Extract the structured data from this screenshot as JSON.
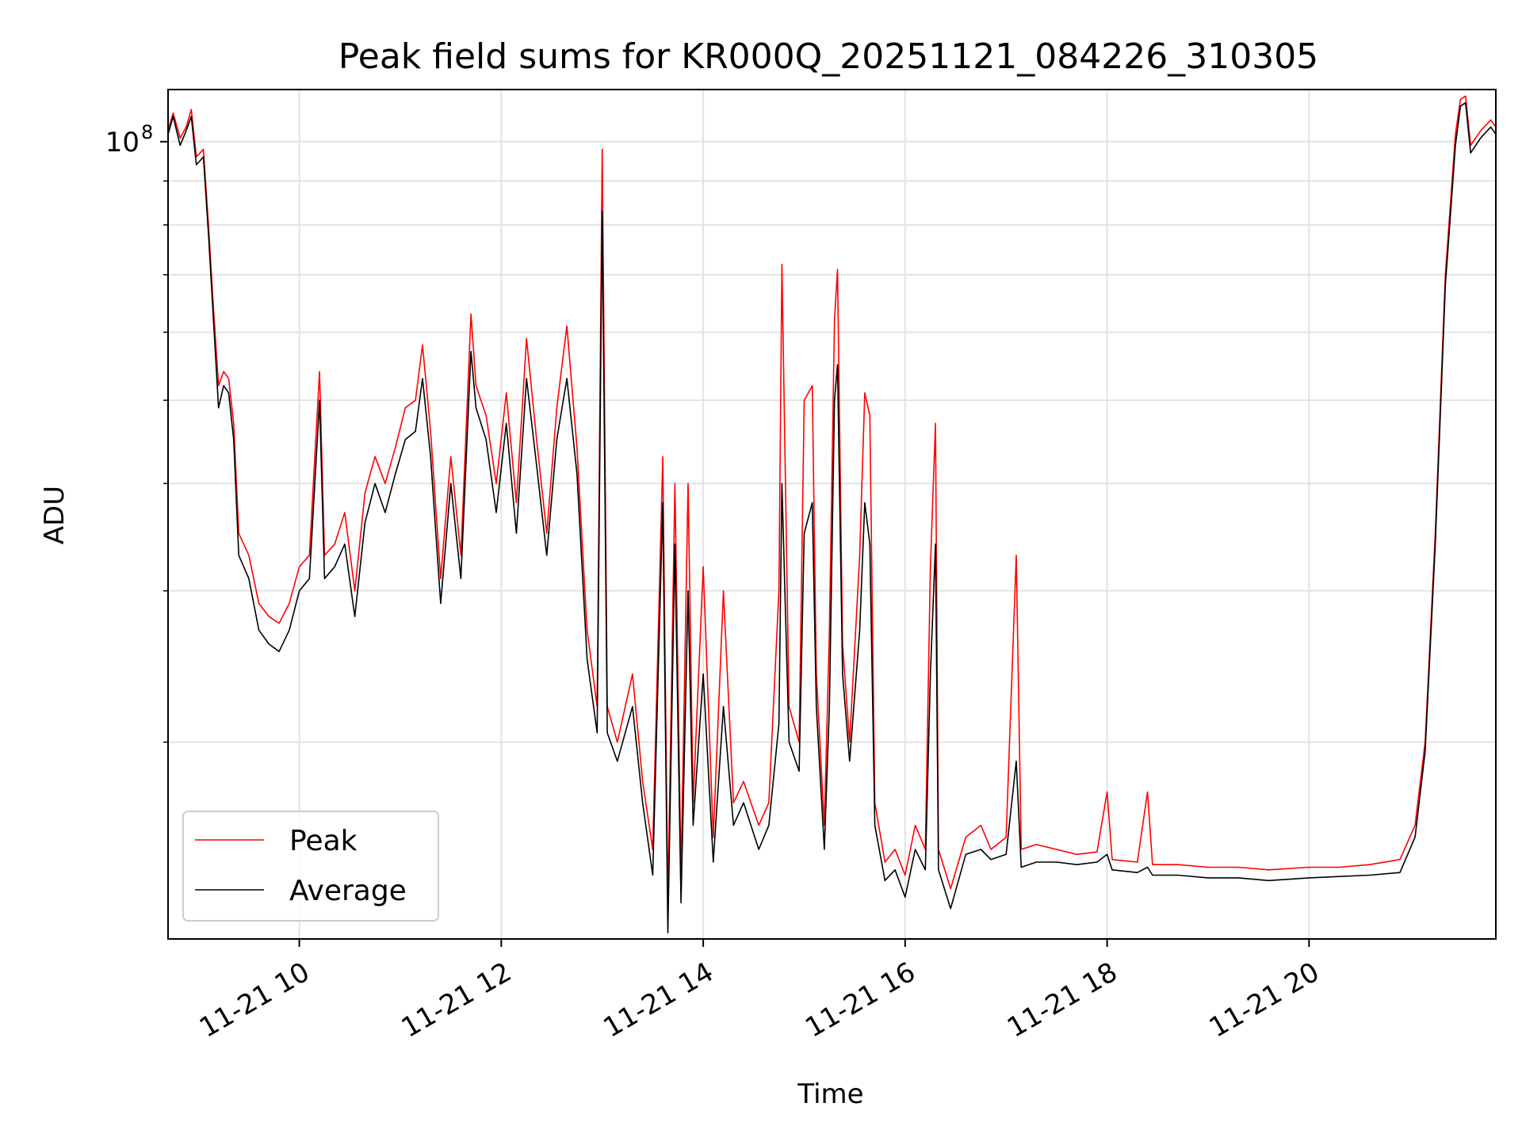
{
  "chart_data": {
    "type": "line",
    "title": "Peak field sums for KR000Q_20251121_084226_310305",
    "xlabel": "Time",
    "ylabel": "ADU",
    "yscale": "log",
    "grid": true,
    "legend_position": "bottom-left",
    "x_unit": "hours since 2025-11-21 00:00",
    "xlim": [
      8.7,
      21.85
    ],
    "ylim": [
      11800000,
      115000000
    ],
    "x_ticks": [
      {
        "value": 10,
        "label": "11-21 10"
      },
      {
        "value": 12,
        "label": "11-21 12"
      },
      {
        "value": 14,
        "label": "11-21 14"
      },
      {
        "value": 16,
        "label": "11-21 16"
      },
      {
        "value": 18,
        "label": "11-21 18"
      },
      {
        "value": 20,
        "label": "11-21 20"
      }
    ],
    "y_major_ticks": [
      {
        "value": 100000000,
        "base": "10",
        "exp": "8"
      }
    ],
    "y_minor_ticks": [
      20000000,
      30000000,
      40000000,
      50000000,
      60000000,
      70000000,
      80000000,
      90000000
    ],
    "legend": [
      "Peak",
      "Average"
    ],
    "series": [
      {
        "name": "Peak",
        "color": "#ff0000",
        "points": [
          [
            8.7,
            103000000
          ],
          [
            8.75,
            108000000
          ],
          [
            8.82,
            101000000
          ],
          [
            8.88,
            104000000
          ],
          [
            8.93,
            109000000
          ],
          [
            8.98,
            96000000
          ],
          [
            9.05,
            98000000
          ],
          [
            9.1,
            80000000
          ],
          [
            9.15,
            64000000
          ],
          [
            9.2,
            52000000
          ],
          [
            9.25,
            54000000
          ],
          [
            9.3,
            53000000
          ],
          [
            9.35,
            47000000
          ],
          [
            9.4,
            35000000
          ],
          [
            9.5,
            33000000
          ],
          [
            9.6,
            29000000
          ],
          [
            9.7,
            28000000
          ],
          [
            9.8,
            27500000
          ],
          [
            9.9,
            29000000
          ],
          [
            10.0,
            32000000
          ],
          [
            10.1,
            33000000
          ],
          [
            10.2,
            54000000
          ],
          [
            10.25,
            33000000
          ],
          [
            10.35,
            34000000
          ],
          [
            10.45,
            37000000
          ],
          [
            10.55,
            30000000
          ],
          [
            10.65,
            39000000
          ],
          [
            10.75,
            43000000
          ],
          [
            10.85,
            40000000
          ],
          [
            10.95,
            44000000
          ],
          [
            11.05,
            49000000
          ],
          [
            11.15,
            50000000
          ],
          [
            11.22,
            58000000
          ],
          [
            11.3,
            46000000
          ],
          [
            11.4,
            31000000
          ],
          [
            11.5,
            43000000
          ],
          [
            11.6,
            33000000
          ],
          [
            11.7,
            63000000
          ],
          [
            11.75,
            52000000
          ],
          [
            11.85,
            48000000
          ],
          [
            11.95,
            40000000
          ],
          [
            12.05,
            51000000
          ],
          [
            12.15,
            38000000
          ],
          [
            12.25,
            59000000
          ],
          [
            12.35,
            45000000
          ],
          [
            12.45,
            35000000
          ],
          [
            12.55,
            49000000
          ],
          [
            12.65,
            61000000
          ],
          [
            12.75,
            44000000
          ],
          [
            12.85,
            27000000
          ],
          [
            12.95,
            22000000
          ],
          [
            13.0,
            98000000
          ],
          [
            13.05,
            22000000
          ],
          [
            13.15,
            20000000
          ],
          [
            13.3,
            24000000
          ],
          [
            13.4,
            18000000
          ],
          [
            13.5,
            15000000
          ],
          [
            13.6,
            43000000
          ],
          [
            13.65,
            13000000
          ],
          [
            13.72,
            40000000
          ],
          [
            13.78,
            14000000
          ],
          [
            13.85,
            40000000
          ],
          [
            13.9,
            17000000
          ],
          [
            14.0,
            32000000
          ],
          [
            14.1,
            15500000
          ],
          [
            14.2,
            30000000
          ],
          [
            14.3,
            17000000
          ],
          [
            14.4,
            18000000
          ],
          [
            14.55,
            16000000
          ],
          [
            14.65,
            17000000
          ],
          [
            14.75,
            30000000
          ],
          [
            14.78,
            72000000
          ],
          [
            14.85,
            22000000
          ],
          [
            14.95,
            20000000
          ],
          [
            15.0,
            50000000
          ],
          [
            15.08,
            52000000
          ],
          [
            15.12,
            24000000
          ],
          [
            15.2,
            16000000
          ],
          [
            15.25,
            27000000
          ],
          [
            15.3,
            62000000
          ],
          [
            15.33,
            71000000
          ],
          [
            15.38,
            26000000
          ],
          [
            15.45,
            20000000
          ],
          [
            15.55,
            33000000
          ],
          [
            15.6,
            51000000
          ],
          [
            15.65,
            48000000
          ],
          [
            15.7,
            17000000
          ],
          [
            15.8,
            14500000
          ],
          [
            15.9,
            15000000
          ],
          [
            16.0,
            14000000
          ],
          [
            16.1,
            16000000
          ],
          [
            16.2,
            15000000
          ],
          [
            16.25,
            32000000
          ],
          [
            16.3,
            47000000
          ],
          [
            16.33,
            15000000
          ],
          [
            16.45,
            13500000
          ],
          [
            16.6,
            15500000
          ],
          [
            16.75,
            16000000
          ],
          [
            16.85,
            15000000
          ],
          [
            17.0,
            15500000
          ],
          [
            17.1,
            33000000
          ],
          [
            17.15,
            15000000
          ],
          [
            17.3,
            15200000
          ],
          [
            17.5,
            15000000
          ],
          [
            17.7,
            14800000
          ],
          [
            17.9,
            14900000
          ],
          [
            18.0,
            17500000
          ],
          [
            18.05,
            14600000
          ],
          [
            18.3,
            14500000
          ],
          [
            18.4,
            17500000
          ],
          [
            18.45,
            14400000
          ],
          [
            18.7,
            14400000
          ],
          [
            19.0,
            14300000
          ],
          [
            19.3,
            14300000
          ],
          [
            19.6,
            14200000
          ],
          [
            20.0,
            14300000
          ],
          [
            20.3,
            14300000
          ],
          [
            20.6,
            14400000
          ],
          [
            20.9,
            14600000
          ],
          [
            21.05,
            16000000
          ],
          [
            21.15,
            20000000
          ],
          [
            21.25,
            35000000
          ],
          [
            21.35,
            70000000
          ],
          [
            21.45,
            102000000
          ],
          [
            21.5,
            112000000
          ],
          [
            21.55,
            113000000
          ],
          [
            21.6,
            99000000
          ],
          [
            21.7,
            103000000
          ],
          [
            21.8,
            106000000
          ],
          [
            21.85,
            104000000
          ]
        ]
      },
      {
        "name": "Average",
        "color": "#000000",
        "points": [
          [
            8.7,
            102000000
          ],
          [
            8.75,
            107000000
          ],
          [
            8.82,
            99000000
          ],
          [
            8.88,
            103000000
          ],
          [
            8.93,
            107000000
          ],
          [
            8.98,
            94000000
          ],
          [
            9.05,
            96000000
          ],
          [
            9.1,
            78000000
          ],
          [
            9.15,
            62000000
          ],
          [
            9.2,
            49000000
          ],
          [
            9.25,
            52000000
          ],
          [
            9.3,
            51000000
          ],
          [
            9.35,
            45000000
          ],
          [
            9.4,
            33000000
          ],
          [
            9.5,
            31000000
          ],
          [
            9.6,
            27000000
          ],
          [
            9.7,
            26000000
          ],
          [
            9.8,
            25500000
          ],
          [
            9.9,
            27000000
          ],
          [
            10.0,
            30000000
          ],
          [
            10.1,
            31000000
          ],
          [
            10.2,
            50000000
          ],
          [
            10.25,
            31000000
          ],
          [
            10.35,
            32000000
          ],
          [
            10.45,
            34000000
          ],
          [
            10.55,
            28000000
          ],
          [
            10.65,
            36000000
          ],
          [
            10.75,
            40000000
          ],
          [
            10.85,
            37000000
          ],
          [
            10.95,
            41000000
          ],
          [
            11.05,
            45000000
          ],
          [
            11.15,
            46000000
          ],
          [
            11.22,
            53000000
          ],
          [
            11.3,
            43000000
          ],
          [
            11.4,
            29000000
          ],
          [
            11.5,
            40000000
          ],
          [
            11.6,
            31000000
          ],
          [
            11.7,
            57000000
          ],
          [
            11.75,
            49000000
          ],
          [
            11.85,
            45000000
          ],
          [
            11.95,
            37000000
          ],
          [
            12.05,
            47000000
          ],
          [
            12.15,
            35000000
          ],
          [
            12.25,
            53000000
          ],
          [
            12.35,
            42000000
          ],
          [
            12.45,
            33000000
          ],
          [
            12.55,
            45000000
          ],
          [
            12.65,
            53000000
          ],
          [
            12.75,
            41000000
          ],
          [
            12.85,
            25000000
          ],
          [
            12.95,
            20500000
          ],
          [
            13.0,
            83000000
          ],
          [
            13.05,
            20500000
          ],
          [
            13.15,
            19000000
          ],
          [
            13.3,
            22000000
          ],
          [
            13.4,
            17000000
          ],
          [
            13.5,
            14000000
          ],
          [
            13.6,
            38000000
          ],
          [
            13.65,
            12000000
          ],
          [
            13.72,
            34000000
          ],
          [
            13.78,
            13000000
          ],
          [
            13.85,
            30000000
          ],
          [
            13.9,
            16000000
          ],
          [
            14.0,
            24000000
          ],
          [
            14.1,
            14500000
          ],
          [
            14.2,
            22000000
          ],
          [
            14.3,
            16000000
          ],
          [
            14.4,
            17000000
          ],
          [
            14.55,
            15000000
          ],
          [
            14.65,
            16000000
          ],
          [
            14.75,
            21000000
          ],
          [
            14.78,
            40000000
          ],
          [
            14.85,
            20000000
          ],
          [
            14.95,
            18500000
          ],
          [
            15.0,
            35000000
          ],
          [
            15.08,
            38000000
          ],
          [
            15.12,
            22000000
          ],
          [
            15.2,
            15000000
          ],
          [
            15.25,
            22000000
          ],
          [
            15.3,
            50000000
          ],
          [
            15.33,
            55000000
          ],
          [
            15.38,
            24000000
          ],
          [
            15.45,
            19000000
          ],
          [
            15.55,
            27000000
          ],
          [
            15.6,
            38000000
          ],
          [
            15.65,
            34000000
          ],
          [
            15.7,
            16000000
          ],
          [
            15.8,
            13800000
          ],
          [
            15.9,
            14200000
          ],
          [
            16.0,
            13200000
          ],
          [
            16.1,
            15000000
          ],
          [
            16.2,
            14200000
          ],
          [
            16.25,
            24000000
          ],
          [
            16.3,
            34000000
          ],
          [
            16.33,
            14200000
          ],
          [
            16.45,
            12800000
          ],
          [
            16.6,
            14800000
          ],
          [
            16.75,
            15000000
          ],
          [
            16.85,
            14600000
          ],
          [
            17.0,
            14800000
          ],
          [
            17.1,
            19000000
          ],
          [
            17.15,
            14300000
          ],
          [
            17.3,
            14500000
          ],
          [
            17.5,
            14500000
          ],
          [
            17.7,
            14400000
          ],
          [
            17.9,
            14500000
          ],
          [
            18.0,
            14800000
          ],
          [
            18.05,
            14200000
          ],
          [
            18.3,
            14100000
          ],
          [
            18.4,
            14300000
          ],
          [
            18.45,
            14000000
          ],
          [
            18.7,
            14000000
          ],
          [
            19.0,
            13900000
          ],
          [
            19.3,
            13900000
          ],
          [
            19.6,
            13800000
          ],
          [
            20.0,
            13900000
          ],
          [
            20.3,
            13950000
          ],
          [
            20.6,
            14000000
          ],
          [
            20.9,
            14100000
          ],
          [
            21.05,
            15500000
          ],
          [
            21.15,
            19500000
          ],
          [
            21.25,
            34000000
          ],
          [
            21.35,
            68000000
          ],
          [
            21.45,
            99000000
          ],
          [
            21.5,
            110000000
          ],
          [
            21.55,
            111000000
          ],
          [
            21.6,
            97000000
          ],
          [
            21.7,
            101000000
          ],
          [
            21.8,
            104000000
          ],
          [
            21.85,
            102000000
          ]
        ]
      }
    ]
  }
}
